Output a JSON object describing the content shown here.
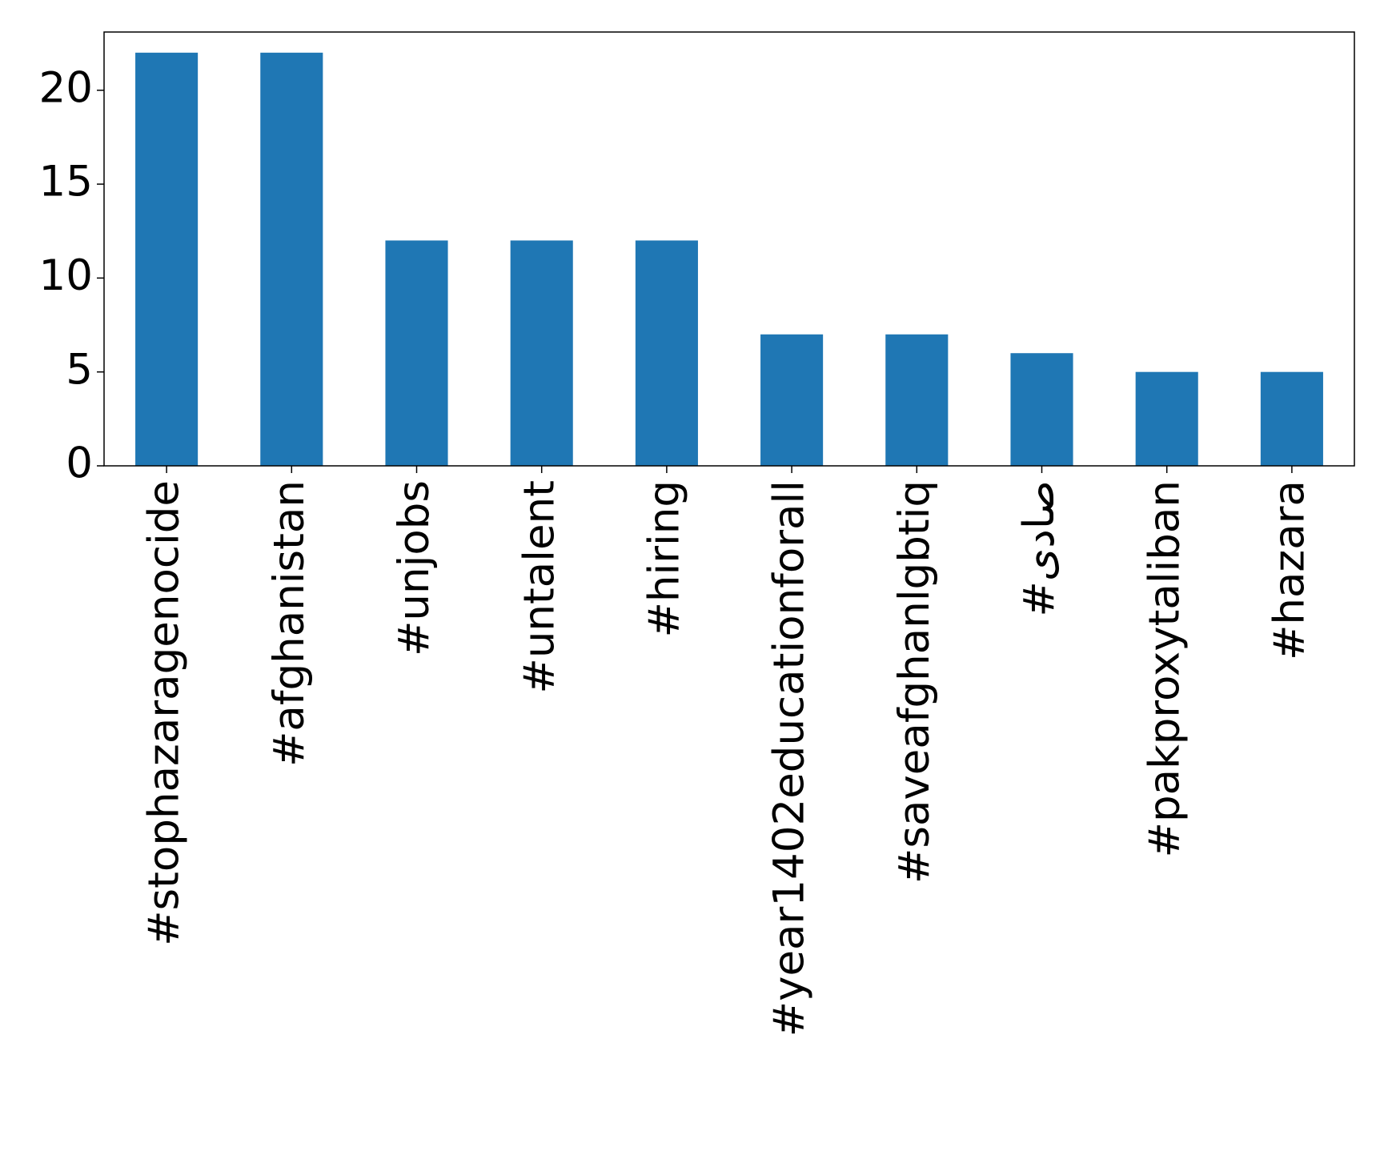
{
  "chart_data": {
    "type": "bar",
    "categories": [
      "#stophazaragenocide",
      "#afghanistan",
      "#unjobs",
      "#untalent",
      "#hiring",
      "#year1402educationforall",
      "#saveafghanlgbtiq",
      "#صادی",
      "#pakproxytaliban",
      "#hazara"
    ],
    "values": [
      22,
      22,
      12,
      12,
      12,
      7,
      7,
      6,
      5,
      5
    ],
    "color": "#1f77b4",
    "ylim": [
      0,
      23.1
    ],
    "yticks": [
      0,
      5,
      10,
      15,
      20
    ],
    "grid": false
  }
}
